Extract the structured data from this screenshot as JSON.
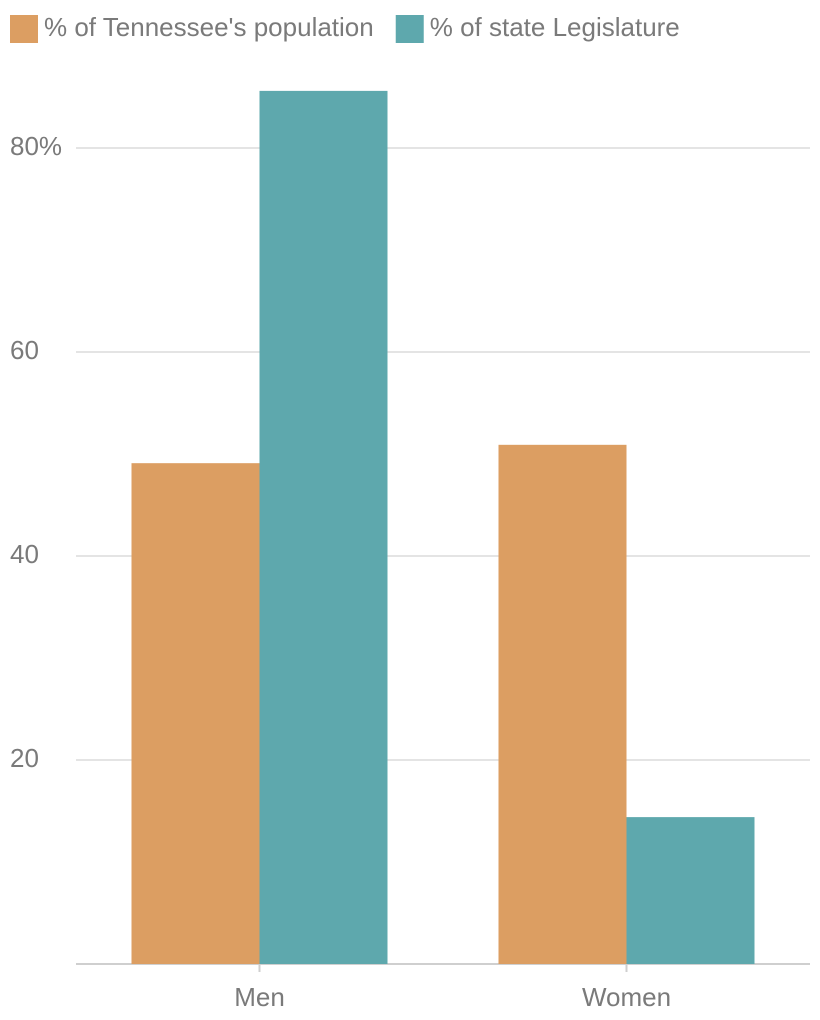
{
  "chart_data": {
    "type": "bar",
    "categories": [
      "Men",
      "Women"
    ],
    "series": [
      {
        "name": "% of Tennessee's population",
        "color": "#dc9e62",
        "values": [
          49.1,
          50.9
        ]
      },
      {
        "name": "% of state Legislature",
        "color": "#5ea8ad",
        "values": [
          85.6,
          14.4
        ]
      }
    ],
    "ylim": [
      0,
      88
    ],
    "yticks": [
      20,
      40,
      60,
      {
        "value": 80,
        "label": "80%"
      }
    ],
    "grid": true,
    "legend": "top-left"
  }
}
